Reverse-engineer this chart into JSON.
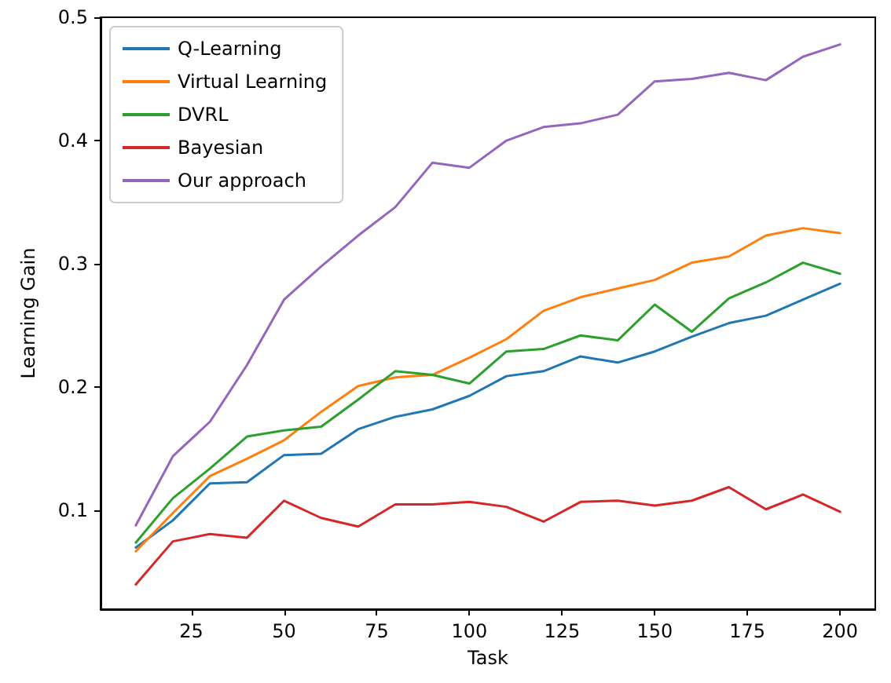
{
  "chart_data": {
    "type": "line",
    "xlabel": "Task",
    "ylabel": "Learning Gain",
    "x": [
      10,
      20,
      30,
      40,
      50,
      60,
      70,
      80,
      90,
      100,
      110,
      120,
      130,
      140,
      150,
      160,
      170,
      180,
      190,
      200
    ],
    "series": [
      {
        "name": "Q-Learning",
        "color": "#1f77b4",
        "values": [
          0.07,
          0.092,
          0.122,
          0.123,
          0.145,
          0.146,
          0.166,
          0.176,
          0.182,
          0.193,
          0.209,
          0.213,
          0.225,
          0.22,
          0.229,
          0.241,
          0.252,
          0.258,
          0.271,
          0.284
        ]
      },
      {
        "name": "Virtual Learning",
        "color": "#ff7f0e",
        "values": [
          0.067,
          0.098,
          0.128,
          0.142,
          0.157,
          0.18,
          0.201,
          0.208,
          0.21,
          0.224,
          0.239,
          0.262,
          0.273,
          0.28,
          0.287,
          0.301,
          0.306,
          0.323,
          0.329,
          0.325
        ]
      },
      {
        "name": "DVRL",
        "color": "#2ca02c",
        "values": [
          0.074,
          0.11,
          0.134,
          0.16,
          0.165,
          0.168,
          0.19,
          0.213,
          0.21,
          0.203,
          0.229,
          0.231,
          0.242,
          0.238,
          0.267,
          0.245,
          0.272,
          0.285,
          0.301,
          0.292
        ]
      },
      {
        "name": "Bayesian",
        "color": "#d62728",
        "values": [
          0.04,
          0.075,
          0.081,
          0.078,
          0.108,
          0.094,
          0.087,
          0.105,
          0.105,
          0.107,
          0.103,
          0.091,
          0.107,
          0.108,
          0.104,
          0.108,
          0.119,
          0.101,
          0.113,
          0.099
        ]
      },
      {
        "name": "Our approach",
        "color": "#9467bd",
        "values": [
          0.088,
          0.144,
          0.172,
          0.218,
          0.271,
          0.298,
          0.323,
          0.346,
          0.382,
          0.378,
          0.4,
          0.411,
          0.414,
          0.421,
          0.448,
          0.45,
          0.455,
          0.449,
          0.468,
          0.478
        ]
      }
    ],
    "xlim": [
      0.5,
      209.5
    ],
    "xticks": [
      25,
      50,
      75,
      100,
      125,
      150,
      175,
      200
    ],
    "ylim": [
      0.02,
      0.5
    ],
    "yticks": [
      0.1,
      0.2,
      0.3,
      0.4,
      0.5
    ],
    "grid": false,
    "legend": "top left",
    "marker": "none",
    "line_style": "solid"
  }
}
